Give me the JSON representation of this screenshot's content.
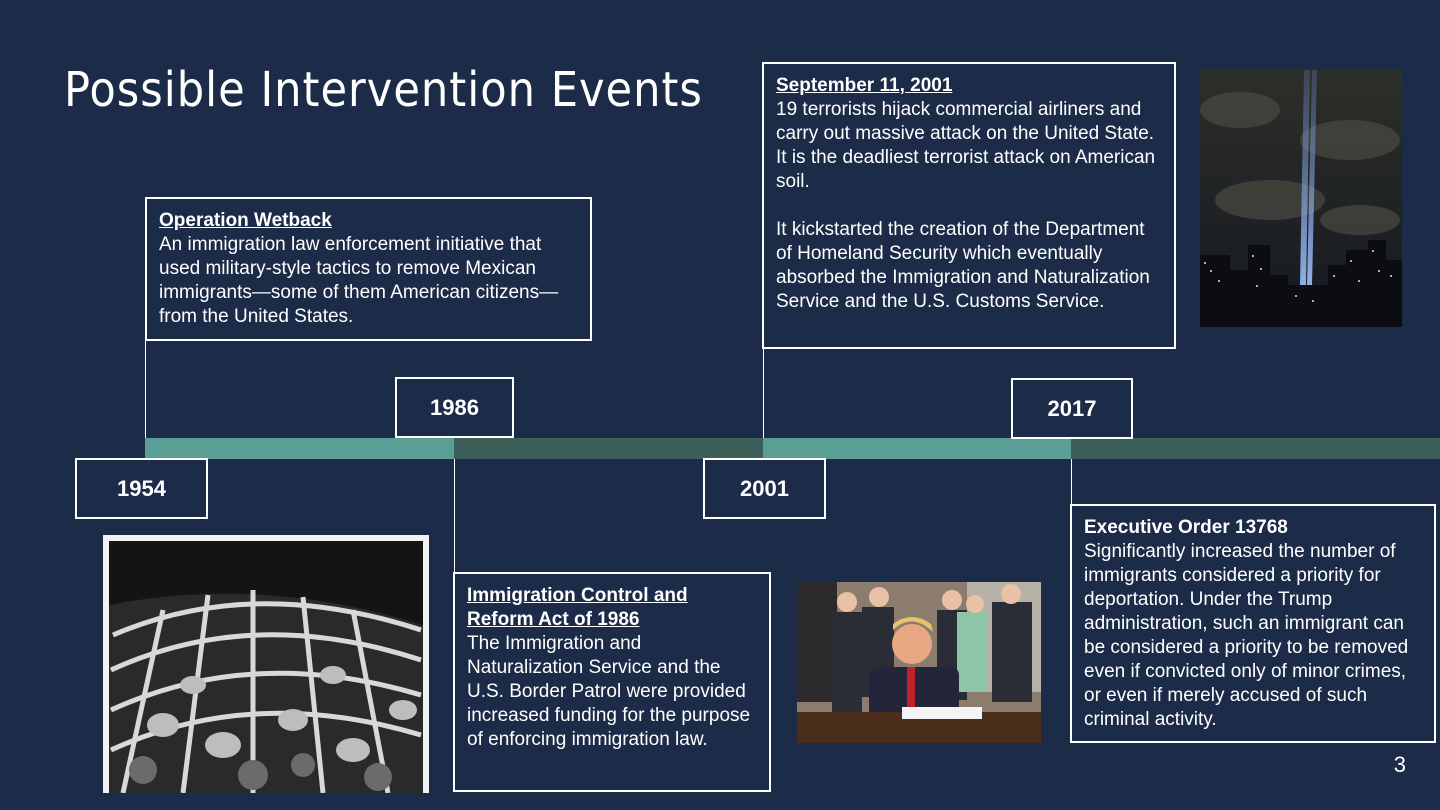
{
  "slide": {
    "title": "Possible Intervention Events",
    "page_number": "3"
  },
  "timeline": {
    "colors": {
      "light": "#5a9e95",
      "dark": "#3c5f59",
      "background": "#1b2b48"
    },
    "years": [
      "1954",
      "1986",
      "2001",
      "2017"
    ]
  },
  "events": {
    "wetback": {
      "heading": "Operation Wetback",
      "body": "An immigration law enforcement initiative that used military-style tactics to remove Mexican immigrants—some of them American citizens—from the United States."
    },
    "irca": {
      "heading": "Immigration Control and Reform Act of 1986",
      "body": "The Immigration and Naturalization Service and the U.S. Border Patrol were provided increased funding for the purpose of enforcing immigration law."
    },
    "sept11": {
      "heading": "September 11, 2001",
      "body1": "19 terrorists hijack commercial airliners and carry out massive attack on the United State. It is the deadliest terrorist attack on American soil.",
      "body2": "It kickstarted the creation of the Department of Homeland Security which eventually absorbed the Immigration and Naturalization Service and the U.S. Customs Service."
    },
    "eo13768": {
      "heading": "Executive Order 13768",
      "body": "Significantly increased the number of immigrants considered a priority for deportation. Under the Trump administration, such an immigrant can be considered a priority to be removed even if convicted only of minor crimes, or even if merely accused of such criminal activity."
    }
  },
  "images": {
    "detention_photo": "black-and-white-detention-photo",
    "tribute_in_light": "tribute-in-light-photo",
    "signing_photo": "executive-order-signing-photo"
  }
}
